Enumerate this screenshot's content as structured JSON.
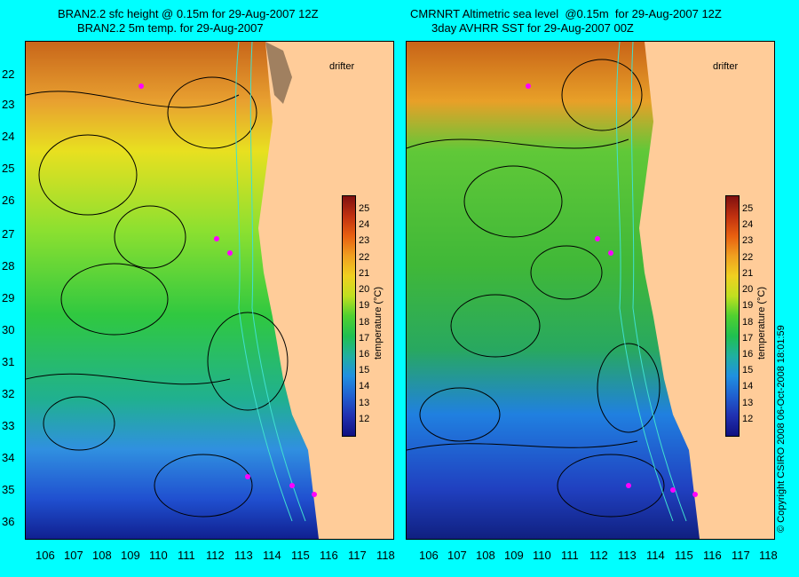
{
  "left_panel": {
    "title_line1": "BRAN2.2 sfc height @ 0.15m for 29-Aug-2007 12Z",
    "title_line2": "BRAN2.2 5m temp. for 29-Aug-2007"
  },
  "right_panel": {
    "title_line1": "CMRNRT Altimetric sea level  @0.15m  for 29-Aug-2007 12Z",
    "title_line2": "3day AVHRR SST for 29-Aug-2007 00Z"
  },
  "drifter_label": "drifter",
  "latitudes": [
    "22",
    "23",
    "24",
    "25",
    "26",
    "27",
    "28",
    "29",
    "30",
    "31",
    "32",
    "33",
    "34",
    "35",
    "36"
  ],
  "longitudes": [
    "106",
    "107",
    "108",
    "109",
    "110",
    "111",
    "112",
    "113",
    "114",
    "115",
    "116",
    "117",
    "118"
  ],
  "colorbar": {
    "title": "temperature (°C)",
    "ticks": [
      "25",
      "24",
      "23",
      "22",
      "21",
      "20",
      "19",
      "18",
      "17",
      "16",
      "15",
      "14",
      "13",
      "12"
    ]
  },
  "copyright": "© Copyright CSIRO 2008    06-Oct-2008 18:01:59",
  "colors": {
    "background": "#00ffff",
    "land": "#ffcc99",
    "drifter": "#ff00ff",
    "contour": "#000000",
    "isobath": "#40e0d0"
  }
}
